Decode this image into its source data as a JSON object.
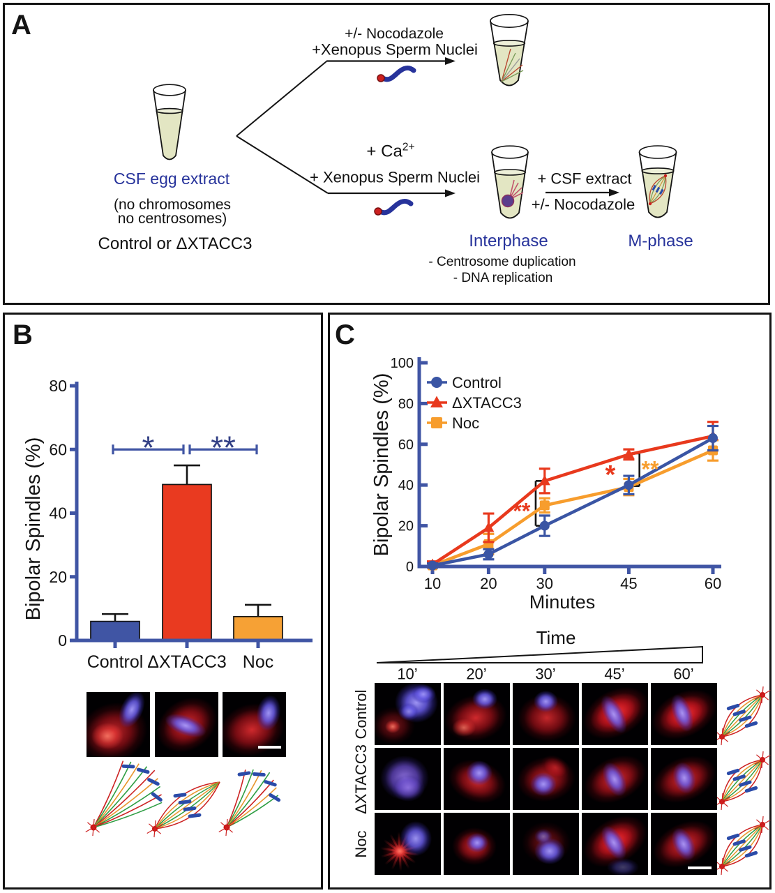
{
  "panelA": {
    "label": "A",
    "colors": {
      "blue_text": "#27339b",
      "tube_fill": "#e3e6c3",
      "outline": "#141414"
    },
    "source": {
      "title": "CSF egg extract",
      "subtitle1": "(no chromosomes",
      "subtitle2": "no centrosomes)",
      "subtitle3": "Control or ΔXTACC3"
    },
    "top_branch": {
      "line1": "+/- Nocodazole",
      "line2": "+Xenopus Sperm Nuclei"
    },
    "bottom_branch": {
      "line1_base": "+ Ca",
      "line1_sup": "2+",
      "line2": "+ Xenopus Sperm Nuclei"
    },
    "mphase_step": {
      "line1": "+ CSF extract",
      "line2": "+/- Nocodazole"
    },
    "interphase": {
      "title": "Interphase",
      "note1": "- Centrosome duplication",
      "note2": "- DNA replication"
    },
    "mphase": {
      "title": "M-phase"
    }
  },
  "panelB": {
    "label": "B",
    "images": [
      {
        "appearance": "monopolar-red-spindle-blue-chromatin"
      },
      {
        "appearance": "bipolar-red-spindle-blue-chromatin"
      },
      {
        "appearance": "monopolar-red-spindle-blue-chromatin",
        "scalebar": true
      }
    ],
    "schematics": [
      "monopolar-fan",
      "closed-half-spindle",
      "small-monopolar-fan"
    ]
  },
  "panelC": {
    "label": "C",
    "time_axis": {
      "title": "Time",
      "labels": [
        "10’",
        "20’",
        "30’",
        "45’",
        "60’"
      ]
    },
    "rows": [
      {
        "label": "Control",
        "cells": [
          "chromatin-mass-aster",
          "half-spindle-up",
          "round-spindle",
          "bipolar-bright",
          "bipolar-bright2"
        ],
        "schematic": "bipolar-spindle"
      },
      {
        "label": "ΔXTACC3",
        "cells": [
          "chromatin-only",
          "half-spindle-center",
          "spiky-spindle",
          "bipolar-mid",
          "bipolar-mid2"
        ],
        "schematic": "bipolar-spindle"
      },
      {
        "label": "Noc",
        "cells": [
          "aster-chromatin",
          "small-spindle",
          "dim-chromatin-spindle",
          "bipolar-bright3",
          "bipolar-scale"
        ],
        "schematic": "bipolar-spindle"
      }
    ]
  },
  "chart_data": [
    {
      "type": "bar",
      "title": "",
      "categories": [
        "Control",
        "ΔXTACC3",
        "Noc"
      ],
      "values": [
        6,
        49,
        7.5
      ],
      "errors": [
        2.3,
        6,
        3.7
      ],
      "bar_colors": [
        "#4055a4",
        "#e93a20",
        "#f6a135"
      ],
      "ylabel": "Bipolar Spindles (%)",
      "ylim": [
        0,
        80
      ],
      "yticks": [
        0,
        20,
        40,
        60,
        80
      ],
      "axis_color": "#4055a4",
      "sig_color": "#323f85",
      "significance": [
        {
          "from": 0,
          "to": 1,
          "label": "*",
          "y": 60
        },
        {
          "from": 1,
          "to": 2,
          "label": "**",
          "y": 60
        }
      ]
    },
    {
      "type": "line",
      "x": [
        10,
        20,
        30,
        45,
        60
      ],
      "xlabel": "Minutes",
      "ylabel": "Bipolar Spindles (%)",
      "ylim": [
        0,
        100
      ],
      "yticks": [
        0,
        20,
        40,
        60,
        80,
        100
      ],
      "axis_color": "#4055a4",
      "legend_position": "top-left",
      "series": [
        {
          "name": "Control",
          "color": "#3a55a4",
          "marker": "circle",
          "values": [
            0.5,
            6,
            20,
            40,
            63
          ],
          "errors": [
            1,
            2.5,
            5,
            4.5,
            6
          ]
        },
        {
          "name": "ΔXTACC3",
          "color": "#e8391d",
          "marker": "triangle",
          "values": [
            1,
            19,
            42,
            55,
            64
          ],
          "errors": [
            1.5,
            7,
            6,
            2.5,
            7
          ]
        },
        {
          "name": "Noc",
          "color": "#f79d2d",
          "marker": "square",
          "values": [
            0.5,
            11,
            30,
            39,
            57
          ],
          "errors": [
            1,
            5,
            3.5,
            4,
            5
          ]
        }
      ],
      "annotations": [
        {
          "text": "**",
          "color": "#e8391d",
          "x": 25.9,
          "y": 29
        },
        {
          "text": "*",
          "color": "#e8391d",
          "x": 41.7,
          "y": 44.5
        },
        {
          "text": "**",
          "color": "#f79d2d",
          "x": 48.8,
          "y": 49.5
        }
      ],
      "brackets": [
        {
          "x": 28.4,
          "y1": 20,
          "y2": 42,
          "caps": "right"
        },
        {
          "x": 46.9,
          "y1": 39.5,
          "y2": 55.5,
          "caps": "left"
        }
      ]
    }
  ]
}
